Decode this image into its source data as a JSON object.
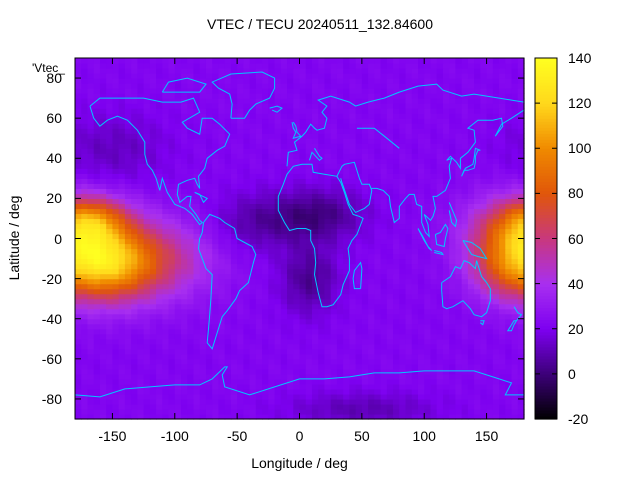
{
  "chart_data": {
    "type": "heatmap",
    "title": "VTEC / TECU 20240511_132.84600",
    "xlabel": "Longitude / deg",
    "ylabel": "Latitude / deg",
    "series_label": "'Vtec_",
    "xlim": [
      -180,
      180
    ],
    "ylim": [
      -90,
      90
    ],
    "x_ticks": [
      -150,
      -100,
      -50,
      0,
      50,
      100,
      150
    ],
    "y_ticks": [
      -80,
      -60,
      -40,
      -20,
      0,
      20,
      40,
      60,
      80
    ],
    "colorbar": {
      "range": [
        -20,
        140
      ],
      "ticks": [
        -20,
        0,
        20,
        40,
        60,
        80,
        100,
        120,
        140
      ],
      "palette": [
        "#000000",
        "#3c0078",
        "#7d00f0",
        "#a82ff0",
        "#c8387e",
        "#e0560a",
        "#f08a00",
        "#ffd81c",
        "#ffff20"
      ]
    },
    "background_level_tecu": 22,
    "enhancements": [
      {
        "name": "equatorial-anomaly-pacific-west",
        "lon": -160,
        "lat": -12,
        "peak_tecu": 100,
        "lon_spread": 28,
        "lat_spread": 13
      },
      {
        "name": "equatorial-anomaly-pacific-north-arm",
        "lon": -165,
        "lat": 10,
        "peak_tecu": 65,
        "lon_spread": 20,
        "lat_spread": 8
      },
      {
        "name": "equatorial-anomaly-pacific-tail",
        "lon": -120,
        "lat": -10,
        "peak_tecu": 58,
        "lon_spread": 35,
        "lat_spread": 14
      },
      {
        "name": "equatorial-anomaly-west-pacific",
        "lon": 170,
        "lat": 2,
        "peak_tecu": 72,
        "lon_spread": 26,
        "lat_spread": 13
      },
      {
        "name": "equatorial-anomaly-west-pacific-south",
        "lon": 160,
        "lat": -18,
        "peak_tecu": 40,
        "lon_spread": 18,
        "lat_spread": 10
      },
      {
        "name": "north-pacific-mid-lat",
        "lon": -150,
        "lat": 45,
        "peak_tecu": 12,
        "lon_spread": 30,
        "lat_spread": 12
      }
    ],
    "depletions": [
      {
        "name": "africa-north-low",
        "lon": 15,
        "lat": 12,
        "min_tecu": 2,
        "lon_spread": 25,
        "lat_spread": 9
      },
      {
        "name": "africa-south-low",
        "lon": 8,
        "lat": -20,
        "min_tecu": 4,
        "lon_spread": 16,
        "lat_spread": 12
      },
      {
        "name": "atlantic-low",
        "lon": -35,
        "lat": 8,
        "min_tecu": 8,
        "lon_spread": 25,
        "lat_spread": 10
      },
      {
        "name": "antarctic-low",
        "lon": 50,
        "lat": -85,
        "min_tecu": 10,
        "lon_spread": 40,
        "lat_spread": 6
      }
    ],
    "coastline_color": "#00c8ff"
  }
}
